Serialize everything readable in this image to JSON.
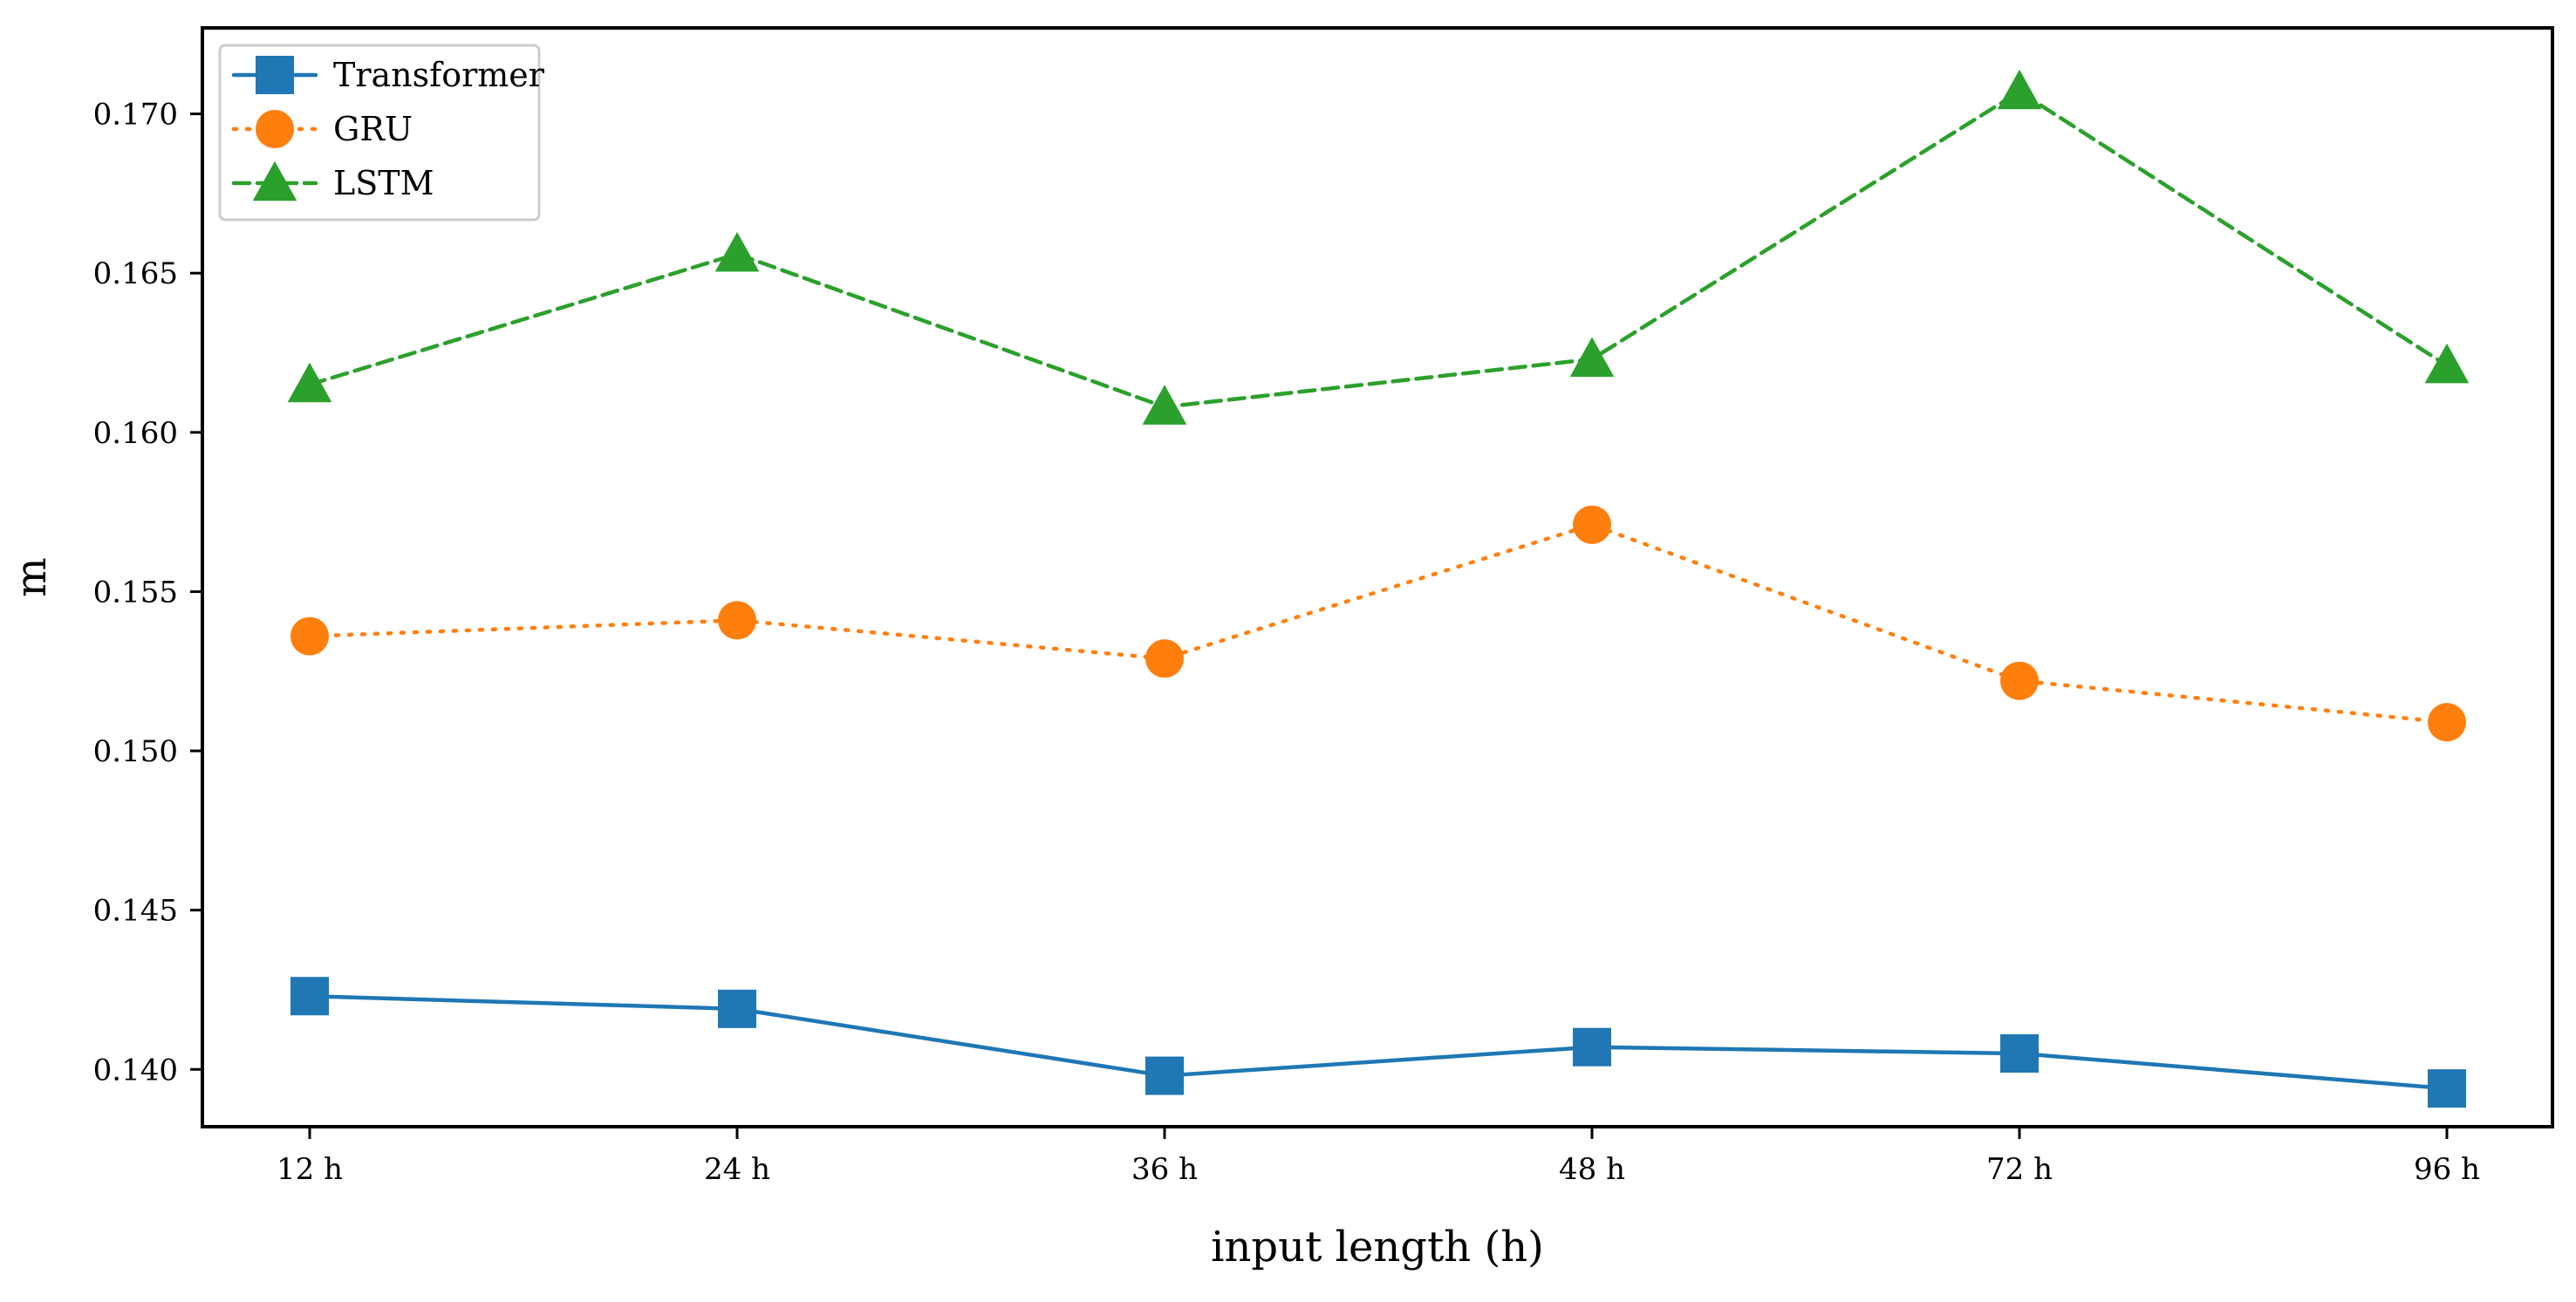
{
  "chart_data": {
    "type": "line",
    "title": "",
    "xlabel": "input length (h)",
    "ylabel": "m",
    "categories": [
      "12 h",
      "24 h",
      "36 h",
      "48 h",
      "72 h",
      "96 h"
    ],
    "ylim": [
      0.1382,
      0.1727
    ],
    "yticks": [
      0.14,
      0.145,
      0.15,
      0.155,
      0.16,
      0.165,
      0.17
    ],
    "ytick_labels": [
      "0.140",
      "0.145",
      "0.150",
      "0.155",
      "0.160",
      "0.165",
      "0.170"
    ],
    "grid": false,
    "legend_position": "top-left",
    "series": [
      {
        "name": "Transformer",
        "color": "#1f77b4",
        "marker": "square",
        "linestyle": "solid",
        "values": [
          0.1423,
          0.1419,
          0.1398,
          0.1407,
          0.1405,
          0.1394
        ]
      },
      {
        "name": "GRU",
        "color": "#ff7f0e",
        "marker": "circle",
        "linestyle": "dotted",
        "values": [
          0.1536,
          0.1541,
          0.1529,
          0.1571,
          0.1522,
          0.1509
        ]
      },
      {
        "name": "LSTM",
        "color": "#2ca02c",
        "marker": "triangle",
        "linestyle": "dashed",
        "values": [
          0.1615,
          0.1656,
          0.1608,
          0.1623,
          0.1707,
          0.1621
        ]
      }
    ]
  }
}
